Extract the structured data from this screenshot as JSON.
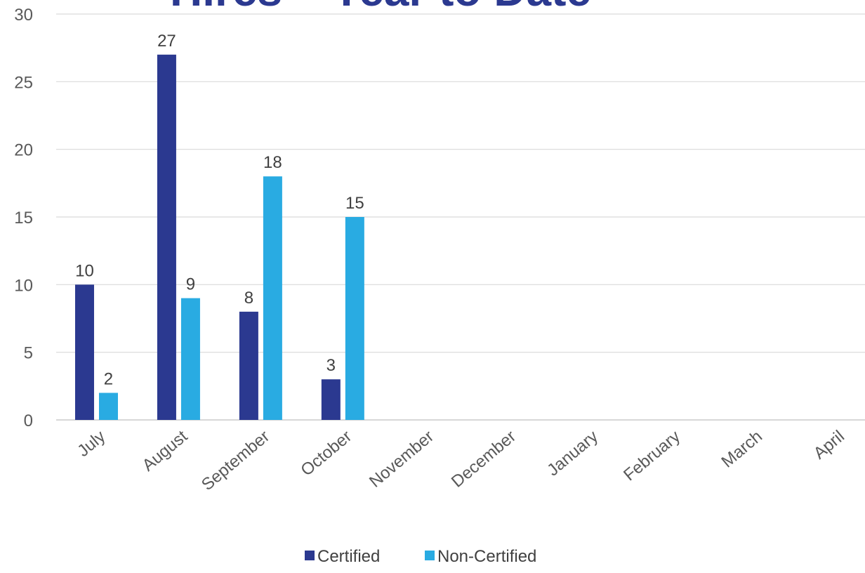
{
  "chart_data": {
    "type": "bar",
    "title": "Hires – Year to Date",
    "xlabel": "",
    "ylabel": "",
    "ylim": [
      0,
      30
    ],
    "y_ticks": [
      0,
      5,
      10,
      15,
      20,
      25,
      30
    ],
    "categories": [
      "July",
      "August",
      "September",
      "October",
      "November",
      "December",
      "January",
      "February",
      "March",
      "April"
    ],
    "series": [
      {
        "name": "Certified",
        "color": "#2b3990",
        "values": [
          10,
          27,
          8,
          3,
          null,
          null,
          null,
          null,
          null,
          null
        ]
      },
      {
        "name": "Non-Certified",
        "color": "#29abe2",
        "values": [
          2,
          9,
          18,
          15,
          null,
          null,
          null,
          null,
          null,
          null
        ]
      }
    ],
    "title_color": "#2b3990",
    "grid": true,
    "legend_position": "bottom-center",
    "x_tick_rotation": "diagonal",
    "data_labels": true
  }
}
